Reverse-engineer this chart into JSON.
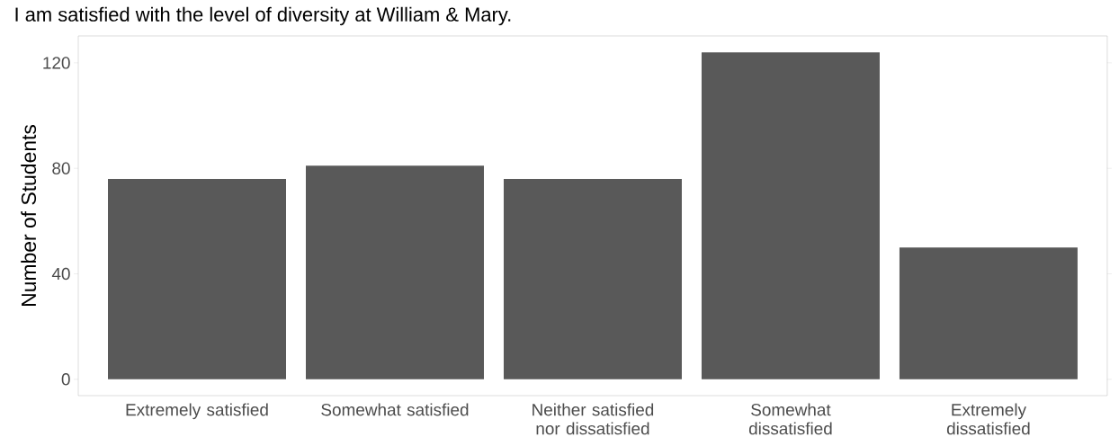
{
  "chart_data": {
    "type": "bar",
    "title": "I am satisfied with the level of diversity at William & Mary.",
    "ylabel": "Number of Students",
    "categories": [
      "Extremely satisfied",
      "Somewhat satisfied",
      "Neither satisfied nor dissatisfied",
      "Somewhat dissatisfied",
      "Extremely dissatisfied"
    ],
    "values": [
      76,
      81,
      76,
      124,
      50
    ],
    "color": "#595959",
    "ylim": [
      -6.2,
      130.2
    ],
    "yticks": [
      0,
      40,
      80,
      120
    ],
    "grid": false
  }
}
